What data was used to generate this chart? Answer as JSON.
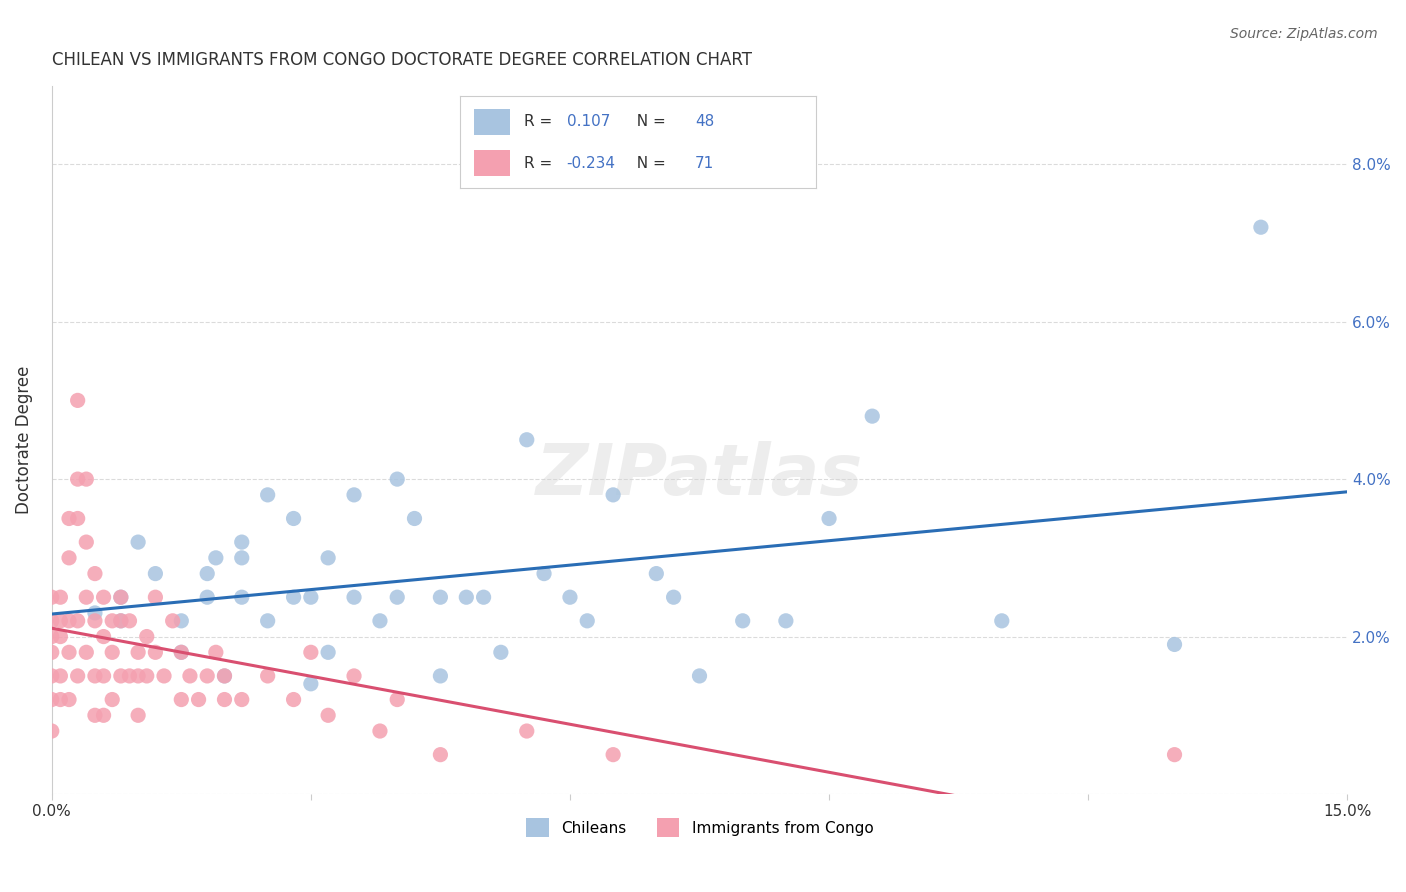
{
  "title": "CHILEAN VS IMMIGRANTS FROM CONGO DOCTORATE DEGREE CORRELATION CHART",
  "source": "Source: ZipAtlas.com",
  "ylabel": "Doctorate Degree",
  "xlim": [
    0.0,
    0.15
  ],
  "ylim": [
    0.0,
    0.09
  ],
  "watermark": "ZIPatlas",
  "r_chilean": 0.107,
  "n_chilean": 48,
  "r_congo": -0.234,
  "n_congo": 71,
  "chilean_color": "#a8c4e0",
  "congo_color": "#f4a0b0",
  "trend_chilean_color": "#2a6db5",
  "trend_congo_color": "#d94f70",
  "background_color": "#ffffff",
  "chilean_x": [
    0.005,
    0.008,
    0.008,
    0.01,
    0.012,
    0.015,
    0.015,
    0.018,
    0.018,
    0.019,
    0.02,
    0.022,
    0.022,
    0.022,
    0.025,
    0.025,
    0.028,
    0.028,
    0.03,
    0.03,
    0.032,
    0.032,
    0.035,
    0.035,
    0.038,
    0.04,
    0.04,
    0.042,
    0.045,
    0.045,
    0.048,
    0.05,
    0.052,
    0.055,
    0.057,
    0.06,
    0.062,
    0.065,
    0.07,
    0.072,
    0.075,
    0.08,
    0.085,
    0.09,
    0.095,
    0.11,
    0.13,
    0.14
  ],
  "chilean_y": [
    0.023,
    0.025,
    0.022,
    0.032,
    0.028,
    0.022,
    0.018,
    0.025,
    0.028,
    0.03,
    0.015,
    0.025,
    0.03,
    0.032,
    0.038,
    0.022,
    0.025,
    0.035,
    0.014,
    0.025,
    0.03,
    0.018,
    0.025,
    0.038,
    0.022,
    0.025,
    0.04,
    0.035,
    0.025,
    0.015,
    0.025,
    0.025,
    0.018,
    0.045,
    0.028,
    0.025,
    0.022,
    0.038,
    0.028,
    0.025,
    0.015,
    0.022,
    0.022,
    0.035,
    0.048,
    0.022,
    0.019,
    0.072
  ],
  "congo_x": [
    0.0,
    0.0,
    0.0,
    0.0,
    0.0,
    0.0,
    0.0,
    0.001,
    0.001,
    0.001,
    0.001,
    0.001,
    0.002,
    0.002,
    0.002,
    0.002,
    0.002,
    0.003,
    0.003,
    0.003,
    0.003,
    0.003,
    0.004,
    0.004,
    0.004,
    0.004,
    0.005,
    0.005,
    0.005,
    0.005,
    0.006,
    0.006,
    0.006,
    0.006,
    0.007,
    0.007,
    0.007,
    0.008,
    0.008,
    0.008,
    0.009,
    0.009,
    0.01,
    0.01,
    0.01,
    0.011,
    0.011,
    0.012,
    0.012,
    0.013,
    0.014,
    0.015,
    0.015,
    0.016,
    0.017,
    0.018,
    0.019,
    0.02,
    0.02,
    0.022,
    0.025,
    0.028,
    0.03,
    0.032,
    0.035,
    0.038,
    0.04,
    0.045,
    0.055,
    0.065,
    0.13
  ],
  "congo_y": [
    0.022,
    0.025,
    0.02,
    0.018,
    0.015,
    0.012,
    0.008,
    0.025,
    0.02,
    0.022,
    0.015,
    0.012,
    0.035,
    0.03,
    0.022,
    0.018,
    0.012,
    0.05,
    0.04,
    0.035,
    0.022,
    0.015,
    0.04,
    0.032,
    0.025,
    0.018,
    0.028,
    0.022,
    0.015,
    0.01,
    0.025,
    0.02,
    0.015,
    0.01,
    0.022,
    0.018,
    0.012,
    0.025,
    0.022,
    0.015,
    0.022,
    0.015,
    0.018,
    0.015,
    0.01,
    0.02,
    0.015,
    0.025,
    0.018,
    0.015,
    0.022,
    0.018,
    0.012,
    0.015,
    0.012,
    0.015,
    0.018,
    0.012,
    0.015,
    0.012,
    0.015,
    0.012,
    0.018,
    0.01,
    0.015,
    0.008,
    0.012,
    0.005,
    0.008,
    0.005,
    0.005
  ]
}
